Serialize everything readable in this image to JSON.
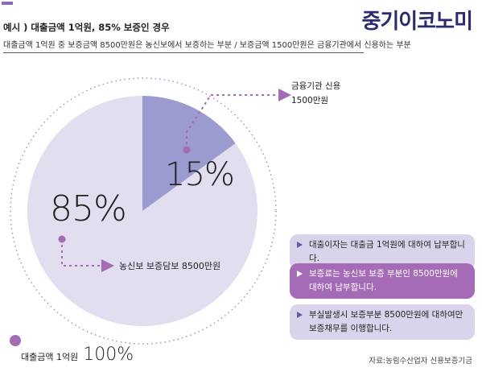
{
  "logo": "중기이코노미",
  "title": "예시 ) 대출금액 1억원, 85% 보증인 경우",
  "subtitle": "대출금액 1억원 중 보증금액 8500만원은 농신보에서 보증하는 부분 /   보증금액 1500만원은 금융기관에서 신용하는 부분",
  "chart_data": {
    "type": "pie",
    "slices": [
      {
        "label": "85%",
        "value": 85,
        "color": "#e3ddf0",
        "callout": "농신보 보증담보 8500만원"
      },
      {
        "label": "15%",
        "value": 15,
        "color": "#9c9bd0",
        "callout_line1": "금융기관 신용",
        "callout_line2": "1500만원"
      }
    ],
    "total_label": "대출금액 1억원",
    "total_pct": "100%"
  },
  "notes": [
    {
      "text": "대출이자는 대출금 1억원에 대하여 납부합니다."
    },
    {
      "line1": "보증료는 농신보 보증 부분인 8500만원에",
      "line2": "대하여 납부합니다."
    },
    {
      "line1": "부실발생시 보증부분 8500만원에 대하여만",
      "line2": "보증채무를 이행합니다."
    }
  ],
  "source": "자료:농림수산업자 신용보증기금",
  "colors": {
    "accent": "#8a6bb8",
    "dot": "#a36cb3",
    "slice_large": "#e3ddf0",
    "slice_small": "#9c9bd0"
  }
}
